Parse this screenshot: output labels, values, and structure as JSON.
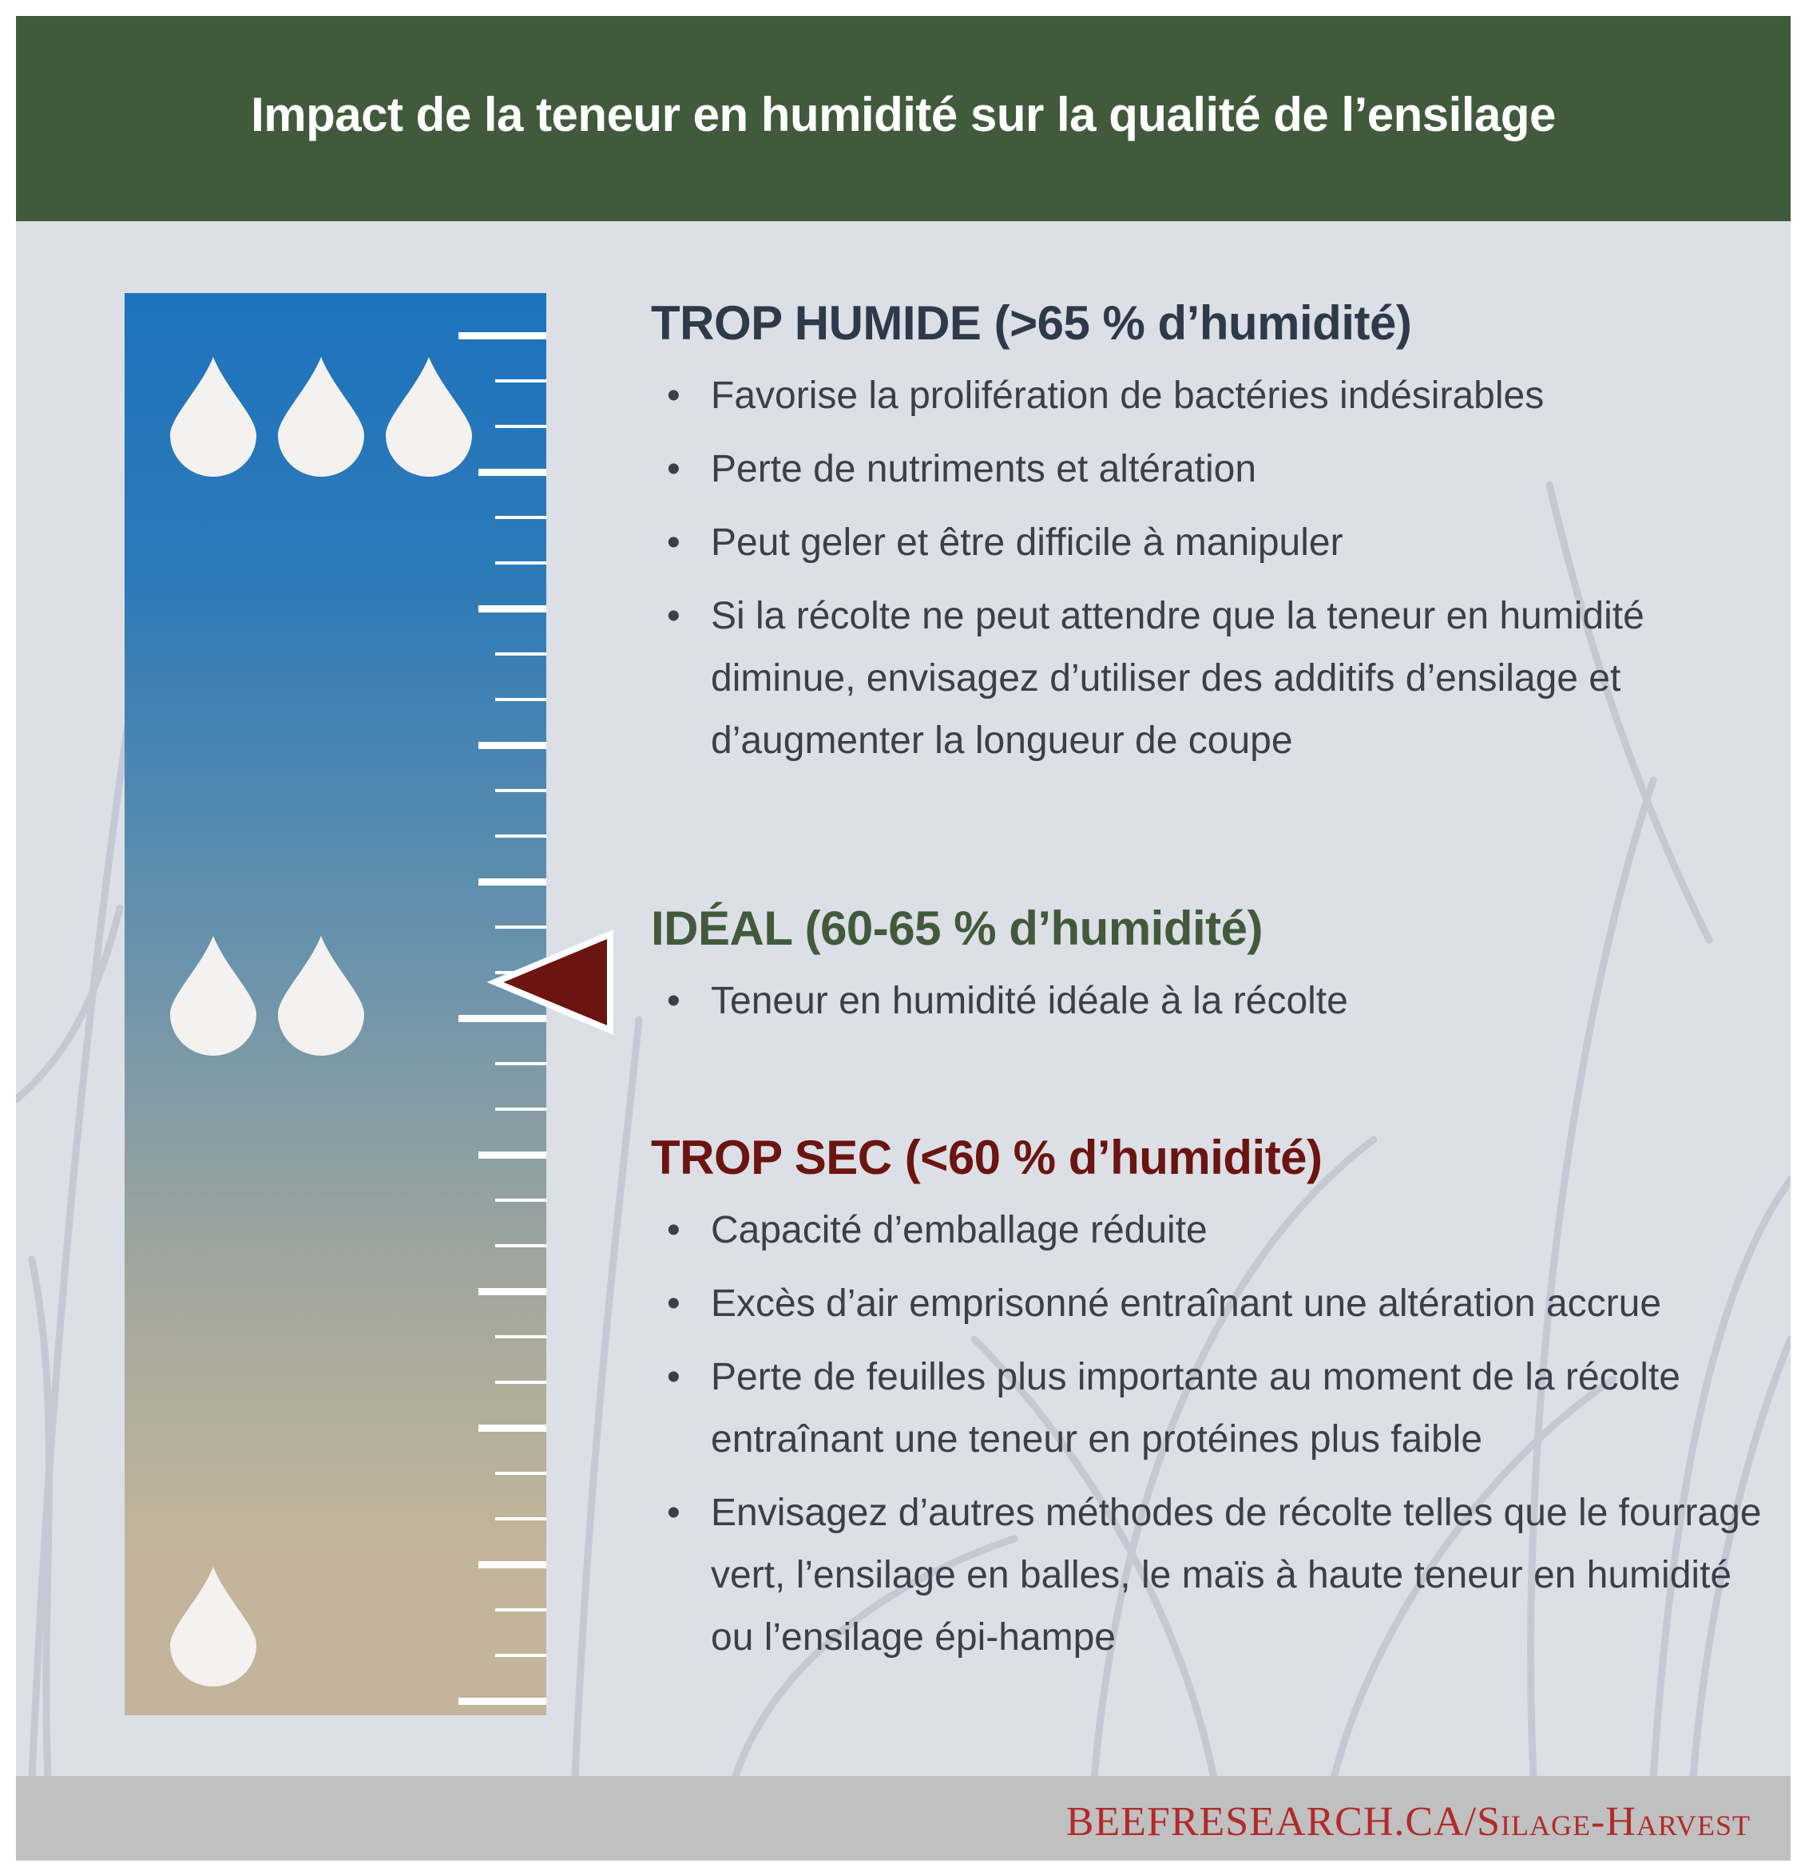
{
  "title": "Impact de la teneur en humidité sur la qualité de l’ensilage",
  "colors": {
    "header": "#425a3c",
    "background": "#dcdfe6",
    "wet": "#2e3a4a",
    "ideal": "#425a3c",
    "dry": "#6b1410",
    "link": "#b22a2a",
    "gauge_top": "#1e73bd",
    "gauge_bottom": "#c2b59b"
  },
  "gauge": {
    "indicator": "ideal",
    "drop_levels": [
      3,
      2,
      1
    ]
  },
  "sections": [
    {
      "heading": "TROP HUMIDE (>65 % d’humidité)",
      "bullets": [
        "Favorise la prolifération de bactéries indésirables",
        "Perte de nutriments et altération",
        "Peut geler et être difficile à manipuler",
        "Si la récolte ne peut attendre que la teneur en humidité diminue, envisagez d’utiliser des additifs d’ensilage et d’augmenter la longueur de coupe"
      ]
    },
    {
      "heading": "IDÉAL (60-65 % d’humidité)",
      "bullets": [
        "Teneur en humidité idéale à la récolte"
      ]
    },
    {
      "heading": "TROP SEC (<60 % d’humidité)",
      "bullets": [
        "Capacité d’emballage réduite",
        "Excès d’air emprisonné entraînant une altération accrue",
        "Perte de feuilles plus importante au moment de la récolte entraînant une teneur en protéines plus faible",
        "Envisagez d’autres méthodes de récolte telles que le fourrage vert, l’ensilage en balles, le maïs à haute teneur en humidité ou l’ensilage épi-hampe"
      ]
    }
  ],
  "footer": {
    "link": "BEEFRESEARCH.CA/Silage-Harvest"
  }
}
